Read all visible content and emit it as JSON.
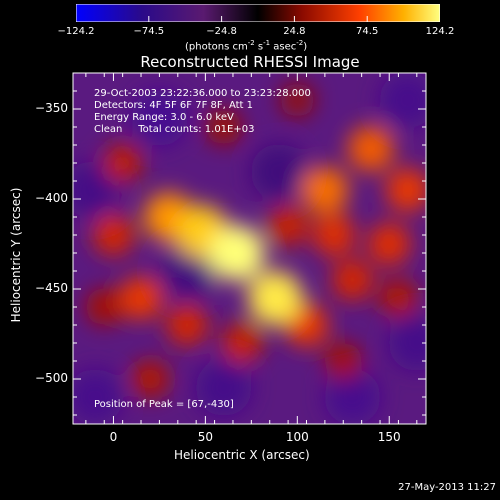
{
  "chart_data": {
    "type": "heatmap",
    "title": "Reconstructed RHESSI Image",
    "xlabel": "Heliocentric X (arcsec)",
    "ylabel": "Heliocentric Y (arcsec)",
    "xlim": [
      -22,
      170
    ],
    "ylim": [
      -525,
      -330
    ],
    "x_ticks": [
      "0",
      "50",
      "100",
      "150"
    ],
    "y_ticks": [
      "-350",
      "-400",
      "-450",
      "-500"
    ],
    "colorbar": {
      "ticks": [
        "-124.2",
        "-74.5",
        "-24.8",
        "24.8",
        "74.5",
        "124.2"
      ],
      "range": [
        -124.2,
        124.2
      ],
      "unit_label": "(photons cm",
      "unit_exp1": "-2",
      "unit_mid1": " s",
      "unit_exp2": "-1",
      "unit_mid2": " asec",
      "unit_exp3": "-2",
      "unit_end": ")"
    },
    "annotations": {
      "time": "29-Oct-2003 23:22:36.000 to 23:23:28.000",
      "detectors": "Detectors: 4F 5F 6F 7F 8F, Att 1",
      "energy": "Energy Range: 3.0 - 6.0 keV",
      "clean": "Clean     Total counts: 1.01E+03",
      "peak": "Position of Peak = [67,-430]"
    },
    "sources": [
      {
        "x": 67,
        "y": -430,
        "value": 124.2
      },
      {
        "x": 48,
        "y": -418,
        "value": 110
      },
      {
        "x": 30,
        "y": -410,
        "value": 95
      },
      {
        "x": 88,
        "y": -455,
        "value": 118
      },
      {
        "x": 115,
        "y": -395,
        "value": 85
      },
      {
        "x": 140,
        "y": -372,
        "value": 80
      },
      {
        "x": 160,
        "y": -395,
        "value": 70
      },
      {
        "x": 150,
        "y": -425,
        "value": 65
      },
      {
        "x": 130,
        "y": -445,
        "value": 60
      },
      {
        "x": 105,
        "y": -470,
        "value": 70
      },
      {
        "x": 70,
        "y": -480,
        "value": 55
      },
      {
        "x": 40,
        "y": -470,
        "value": 60
      },
      {
        "x": 15,
        "y": -455,
        "value": 70
      },
      {
        "x": 0,
        "y": -420,
        "value": 60
      },
      {
        "x": 5,
        "y": -380,
        "value": 50
      },
      {
        "x": 60,
        "y": -360,
        "value": 35
      },
      {
        "x": 100,
        "y": -345,
        "value": 30
      },
      {
        "x": 120,
        "y": -420,
        "value": 65
      },
      {
        "x": 95,
        "y": -415,
        "value": 55
      },
      {
        "x": 155,
        "y": -455,
        "value": 45
      },
      {
        "x": 125,
        "y": -490,
        "value": 40
      },
      {
        "x": 20,
        "y": -500,
        "value": 45
      },
      {
        "x": -5,
        "y": -460,
        "value": 40
      }
    ],
    "negative_regions": [
      {
        "x": 25,
        "y": -355,
        "value": -70
      },
      {
        "x": 160,
        "y": -345,
        "value": -60
      },
      {
        "x": 130,
        "y": -510,
        "value": -65
      },
      {
        "x": 60,
        "y": -505,
        "value": -55
      },
      {
        "x": -10,
        "y": -510,
        "value": -60
      },
      {
        "x": 165,
        "y": -480,
        "value": -55
      },
      {
        "x": -12,
        "y": -395,
        "value": -50
      },
      {
        "x": 40,
        "y": -440,
        "value": -35
      },
      {
        "x": 90,
        "y": -385,
        "value": -30
      }
    ]
  },
  "footer": "27-May-2013 11:27",
  "colors": {
    "background": "#000000",
    "axes": "#ffffff"
  }
}
